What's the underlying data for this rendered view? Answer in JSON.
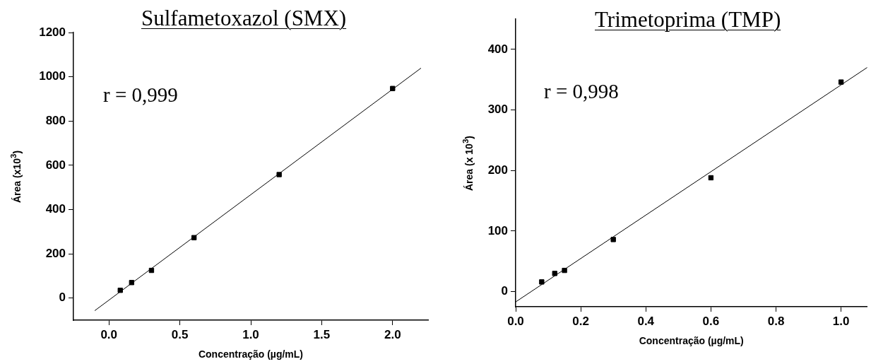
{
  "chart_data": [
    {
      "type": "scatter",
      "title": "Sulfametoxazol (SMX)",
      "xlabel": "Concentração (µg/mL)",
      "ylabel": "Área (x10$^{3}$)",
      "annotations": [
        "r = 0,999"
      ],
      "xlim": [
        -0.25,
        2.25
      ],
      "xticks": [
        {
          "value": 0,
          "label": "0.0"
        },
        0.5,
        {
          "value": 1,
          "label": "1.0"
        },
        1.5,
        {
          "value": 2,
          "label": "2.0"
        }
      ],
      "ylim": [
        -100,
        1200
      ],
      "yticks": [
        0,
        200,
        400,
        600,
        800,
        1000,
        1200
      ],
      "grid": false,
      "legend": false,
      "series": [
        {
          "marker": "square",
          "color": "#000000",
          "x": [
            0.08,
            0.16,
            0.3,
            0.6,
            1.2,
            2.0
          ],
          "values": [
            35,
            70,
            125,
            273,
            558,
            947
          ]
        },
        {
          "type": "line",
          "marker": "none",
          "color": "#000000",
          "x": [
            -0.1,
            2.2
          ],
          "values": [
            -57,
            1039
          ]
        }
      ]
    },
    {
      "type": "scatter",
      "title": "Trimetoprima (TMP)",
      "xlabel": "Concentração (µg/mL)",
      "ylabel": "Área (x 10$^{3}$)",
      "annotations": [
        "r = 0,998"
      ],
      "xlim": [
        0,
        1.08
      ],
      "xticks": [
        {
          "value": 0,
          "label": "0.0"
        },
        0.2,
        0.4,
        0.6,
        0.8,
        {
          "value": 1,
          "label": "1.0"
        }
      ],
      "ylim": [
        -25,
        450
      ],
      "yticks": [
        0,
        100,
        200,
        300,
        400
      ],
      "grid": false,
      "legend": false,
      "series": [
        {
          "marker": "square",
          "color": "#000000",
          "x": [
            0.08,
            0.12,
            0.15,
            0.3,
            0.6,
            1.0
          ],
          "values": [
            16,
            30,
            35,
            86,
            188,
            346
          ]
        },
        {
          "type": "line",
          "marker": "none",
          "color": "#000000",
          "x": [
            0,
            1.08
          ],
          "values": [
            -17,
            370
          ]
        }
      ]
    }
  ]
}
